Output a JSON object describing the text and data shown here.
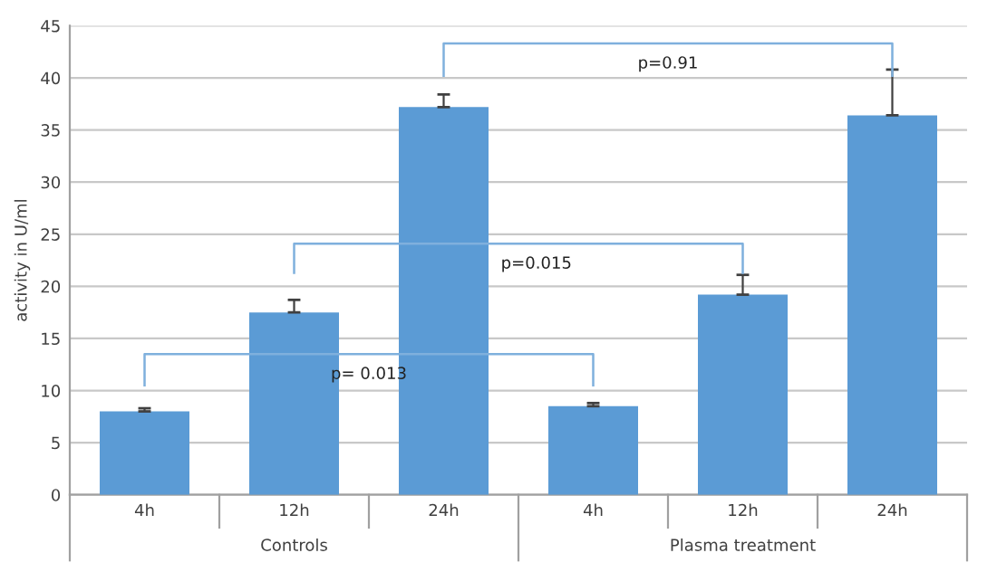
{
  "chart_data": {
    "type": "bar",
    "ylabel": "activity in U/ml",
    "categories": [
      "4h",
      "12h",
      "24h",
      "4h",
      "12h",
      "24h"
    ],
    "values": [
      8.0,
      17.5,
      37.2,
      8.5,
      19.2,
      36.4
    ],
    "errors": [
      [
        8.0,
        8.3
      ],
      [
        17.5,
        18.7
      ],
      [
        37.2,
        38.4
      ],
      [
        8.5,
        8.8
      ],
      [
        19.2,
        21.1
      ],
      [
        36.4,
        40.8
      ]
    ],
    "color": "#5b9bd5",
    "ylim": [
      0,
      45
    ],
    "yticks": [
      0,
      5,
      10,
      15,
      20,
      25,
      30,
      35,
      40,
      45
    ],
    "grid": "y",
    "annotations": [
      "p= 0.013",
      "p=0.015",
      "p=0.91",
      "Controls",
      "Plasma treatment"
    ]
  }
}
